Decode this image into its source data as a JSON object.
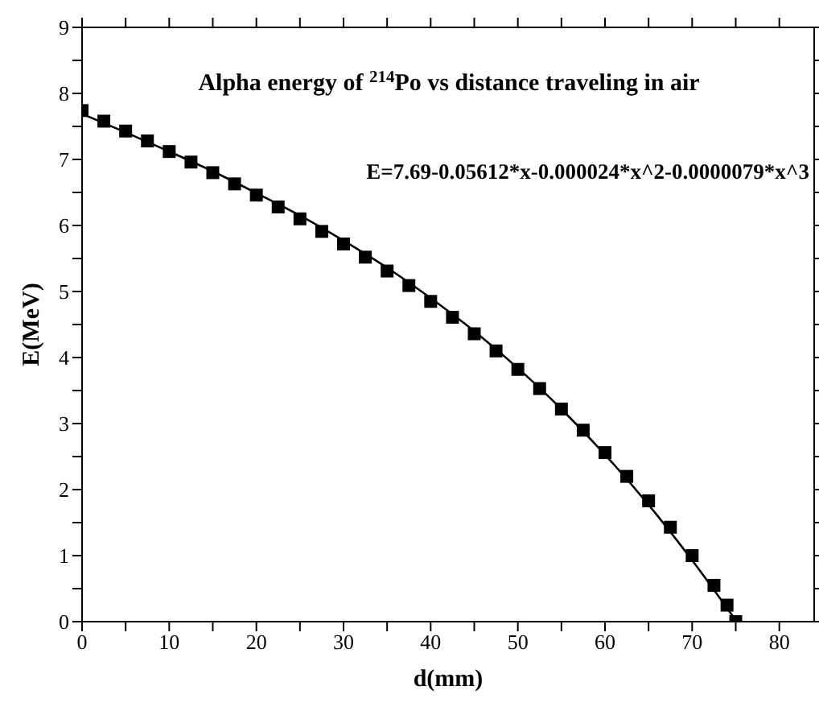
{
  "chart_data": {
    "type": "line",
    "title": "Alpha energy of $^{214}$Po vs distance traveling in air",
    "xlabel": "d(mm)",
    "ylabel": "E(MeV)",
    "annotations": [
      "E=7.69-0.05612*x-0.000024*x^2-0.0000079*x^3"
    ],
    "series": [
      {
        "type": "scatter",
        "marker": "square",
        "color": "#000000",
        "x": [
          0,
          2.5,
          5,
          7.5,
          10,
          12.5,
          15,
          17.5,
          20,
          22.5,
          25,
          27.5,
          30,
          32.5,
          35,
          37.5,
          40,
          42.5,
          45,
          47.5,
          50,
          52.5,
          55,
          57.5,
          60,
          62.5,
          65,
          67.5,
          70,
          72.5,
          74,
          75
        ],
        "values": [
          7.74,
          7.58,
          7.43,
          7.28,
          7.12,
          6.96,
          6.8,
          6.63,
          6.46,
          6.28,
          6.1,
          5.91,
          5.72,
          5.52,
          5.31,
          5.09,
          4.85,
          4.61,
          4.36,
          4.1,
          3.82,
          3.53,
          3.22,
          2.9,
          2.56,
          2.2,
          1.83,
          1.43,
          1.0,
          0.55,
          0.25,
          0
        ]
      },
      {
        "marker": "none",
        "line_style": "solid",
        "color": "#000000",
        "x": [
          0,
          5,
          10,
          15,
          20,
          25,
          30,
          35,
          40,
          45,
          50,
          55,
          60,
          65,
          70,
          75
        ],
        "values": [
          7.69,
          7.41,
          7.12,
          6.82,
          6.49,
          6.15,
          5.77,
          5.36,
          4.9,
          4.4,
          3.84,
          3.22,
          2.53,
          1.77,
          0.93,
          0.02
        ]
      }
    ],
    "xlim": [
      0,
      84
    ],
    "ylim": [
      0,
      9
    ],
    "xticks": [
      0,
      {
        "value": 5,
        "label": null
      },
      10,
      {
        "value": 15,
        "label": null
      },
      20,
      {
        "value": 25,
        "label": null
      },
      30,
      {
        "value": 35,
        "label": null
      },
      40,
      {
        "value": 45,
        "label": null
      },
      50,
      {
        "value": 55,
        "label": null
      },
      60,
      {
        "value": 65,
        "label": null
      },
      70,
      {
        "value": 75,
        "label": null
      },
      80
    ],
    "yticks": [
      0,
      {
        "value": 0.5,
        "label": null
      },
      1,
      {
        "value": 1.5,
        "label": null
      },
      2,
      {
        "value": 2.5,
        "label": null
      },
      3,
      {
        "value": 3.5,
        "label": null
      },
      4,
      {
        "value": 4.5,
        "label": null
      },
      5,
      {
        "value": 5.5,
        "label": null
      },
      6,
      {
        "value": 6.5,
        "label": null
      },
      7,
      {
        "value": 7.5,
        "label": null
      },
      8,
      {
        "value": 8.5,
        "label": null
      },
      9
    ],
    "legend": false
  }
}
